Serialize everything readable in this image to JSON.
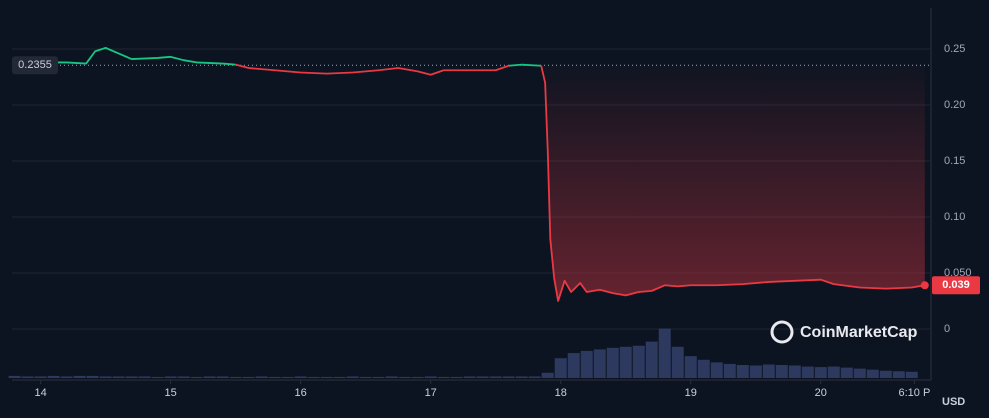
{
  "chart_data": {
    "type": "line",
    "x": [
      13.78,
      14.0,
      14.2,
      14.35,
      14.42,
      14.5,
      14.6,
      14.7,
      14.9,
      15.0,
      15.1,
      15.2,
      15.4,
      15.5,
      15.6,
      15.8,
      16.0,
      16.2,
      16.4,
      16.6,
      16.75,
      16.9,
      17.0,
      17.1,
      17.3,
      17.5,
      17.6,
      17.7,
      17.85,
      17.88,
      17.9,
      17.92,
      17.95,
      17.98,
      18.03,
      18.08,
      18.15,
      18.2,
      18.3,
      18.4,
      18.5,
      18.6,
      18.7,
      18.8,
      18.9,
      19.0,
      19.2,
      19.4,
      19.6,
      19.8,
      20.0,
      20.1,
      20.3,
      20.5,
      20.7,
      20.8
    ],
    "series": [
      {
        "color": "#16c784",
        "values": [
          0.238,
          0.238,
          0.238,
          0.237,
          0.248,
          0.251,
          0.246,
          0.241,
          0.242,
          0.243,
          0.24,
          0.238,
          0.237,
          0.236,
          null,
          null,
          null,
          null,
          null,
          null,
          null,
          null,
          null,
          null,
          null,
          null,
          0.235,
          0.236,
          0.235,
          null,
          null,
          null,
          null,
          null,
          null,
          null,
          null,
          null,
          null,
          null,
          null,
          null,
          null,
          null,
          null,
          null,
          null,
          null,
          null,
          null,
          null,
          null,
          null,
          null,
          null,
          null
        ]
      },
      {
        "color": "#ea3943",
        "values": [
          null,
          null,
          null,
          null,
          null,
          null,
          null,
          null,
          null,
          null,
          null,
          null,
          null,
          0.236,
          0.233,
          0.231,
          0.229,
          0.228,
          0.229,
          0.231,
          0.233,
          0.23,
          0.227,
          0.231,
          0.231,
          0.231,
          0.235,
          null,
          0.235,
          0.22,
          0.16,
          0.08,
          0.045,
          0.025,
          0.043,
          0.033,
          0.041,
          0.033,
          0.035,
          0.032,
          0.03,
          0.033,
          0.034,
          0.039,
          0.038,
          0.039,
          0.039,
          0.04,
          0.042,
          0.043,
          0.044,
          0.04,
          0.037,
          0.036,
          0.037,
          0.039
        ]
      }
    ],
    "baseline": 0.2355,
    "xlim": [
      13.78,
      20.84
    ],
    "xticks": [
      14,
      15,
      16,
      17,
      18,
      19,
      20,
      {
        "value": 20.72,
        "label": "6:10 P"
      }
    ],
    "ylim": [
      -0.0438,
      0.2866
    ],
    "yticks": [
      {
        "value": 0.25,
        "label": "0.25"
      },
      {
        "value": 0.2,
        "label": "0.20"
      },
      0.15,
      {
        "value": 0.1,
        "label": "0.10"
      },
      {
        "value": 0.05,
        "label": "0.050"
      },
      0
    ],
    "grid": true,
    "currency": "USD",
    "watermark": "CoinMarketCap",
    "volume": {
      "color": "#34406a",
      "vlim": [
        0,
        100
      ],
      "x": [
        13.8,
        13.9,
        14.0,
        14.1,
        14.2,
        14.3,
        14.4,
        14.5,
        14.6,
        14.7,
        14.8,
        14.9,
        15.0,
        15.1,
        15.2,
        15.3,
        15.4,
        15.5,
        15.6,
        15.7,
        15.8,
        15.9,
        16.0,
        16.1,
        16.2,
        16.3,
        16.4,
        16.5,
        16.6,
        16.7,
        16.8,
        16.9,
        17.0,
        17.1,
        17.2,
        17.3,
        17.4,
        17.5,
        17.6,
        17.7,
        17.8,
        17.9,
        18.0,
        18.1,
        18.2,
        18.3,
        18.4,
        18.5,
        18.6,
        18.7,
        18.8,
        18.9,
        19.0,
        19.1,
        19.2,
        19.3,
        19.4,
        19.5,
        19.6,
        19.7,
        19.8,
        19.9,
        20.0,
        20.1,
        20.2,
        20.3,
        20.4,
        20.5,
        20.6,
        20.7
      ],
      "values": [
        4,
        3,
        3,
        4,
        3,
        4,
        4,
        3,
        3,
        3,
        3,
        2,
        3,
        3,
        2,
        3,
        3,
        2,
        2,
        3,
        2,
        2,
        3,
        2,
        2,
        2,
        3,
        2,
        2,
        3,
        2,
        2,
        3,
        2,
        2,
        3,
        3,
        3,
        3,
        3,
        3,
        10,
        38,
        48,
        52,
        55,
        58,
        60,
        62,
        70,
        95,
        60,
        42,
        35,
        30,
        27,
        25,
        24,
        26,
        25,
        24,
        22,
        21,
        22,
        20,
        18,
        16,
        14,
        13,
        12
      ]
    }
  }
}
